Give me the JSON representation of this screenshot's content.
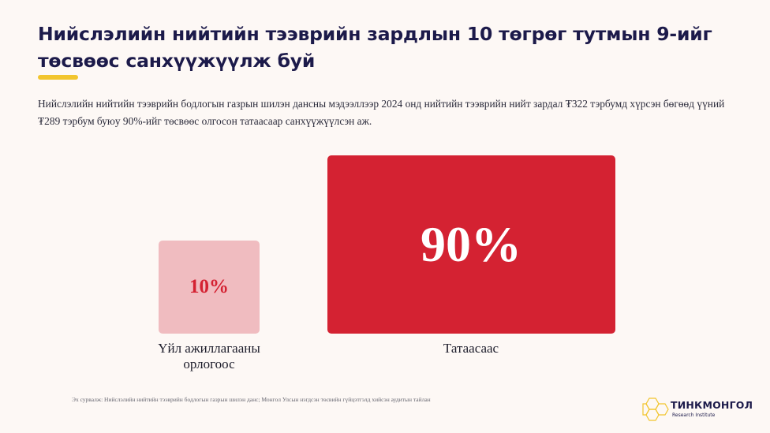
{
  "title": "Нийслэлийн нийтийн тээврийн зардлын 10 төгрөг тутмын 9-ийг төсвөөс санхүүжүүлж буй",
  "subtitle": "Нийслэлийн нийтийн тээврийн бодлогын газрын шилэн дансны мэдээллээр 2024 онд нийтийн тээврийн нийт зардал ₮322 тэрбумд хүрсэн бөгөөд үүний ₮289 тэрбум буюу 90%-ийг төсвөөс олгосон татаасаар санхүүжүүлсэн аж.",
  "source": "Эх сурвалж: Нийслэлийн нийтийн тээврийн бодлогын газрын шилэн данс; Монгол Улсын нэгдсэн төсвийн гүйцэтгэлд хийсэн аудитын тайлан",
  "logo": {
    "name": "ТИНКМОНГОЛ",
    "tagline": "Research Institute"
  },
  "colors": {
    "accent": "#f2c52e",
    "primary": "#d42232",
    "light": "#f0bcc0",
    "light_text": "#d42232",
    "primary_text": "#ffffff"
  },
  "chart_data": {
    "type": "bar",
    "categories": [
      "Үйл ажиллагааны орлогоос",
      "Татаасаас"
    ],
    "values": [
      10,
      90
    ],
    "value_labels": [
      "10%",
      "90%"
    ],
    "unit": "%"
  }
}
